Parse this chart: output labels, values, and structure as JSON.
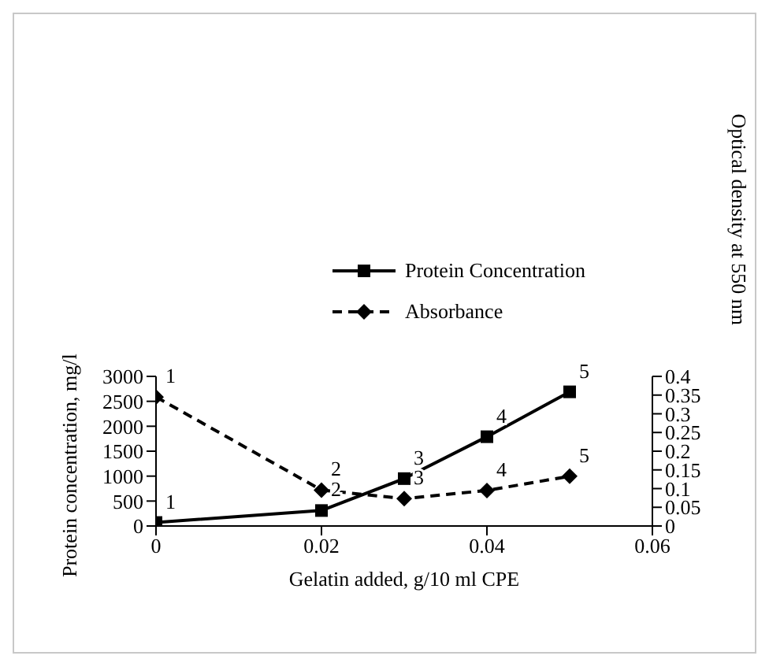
{
  "chart_data": {
    "type": "line",
    "xlabel": "Gelatin added, g/10 ml CPE",
    "ylabel": "Protein concentration, mg/l",
    "y2label": "Optical density at 550 nm",
    "x": [
      0,
      0.02,
      0.03,
      0.04,
      0.05
    ],
    "series": [
      {
        "name": "Protein Concentration",
        "color": "#000000",
        "values": [
          70,
          310,
          950,
          1790,
          2690
        ],
        "marker": "square",
        "line_style": "solid"
      },
      {
        "name": "Absorbance",
        "color": "#000000",
        "values": [
          0.345,
          0.096,
          0.073,
          0.095,
          0.133
        ],
        "marker": "diamond",
        "line_style": "dashed",
        "axis": "y2"
      }
    ],
    "annotations": [
      {
        "text": "1",
        "x": 0,
        "y": 70
      },
      {
        "text": "2",
        "x": 0.02,
        "y": 310
      },
      {
        "text": "3",
        "x": 0.03,
        "y": 950
      },
      {
        "text": "4",
        "x": 0.04,
        "y": 1790
      },
      {
        "text": "5",
        "x": 0.05,
        "y": 2690
      },
      {
        "text": "1",
        "x": 0,
        "y": 2588
      },
      {
        "text": "2",
        "x": 0.02,
        "y": 720
      },
      {
        "text": "3",
        "x": 0.03,
        "y": 548
      },
      {
        "text": "4",
        "x": 0.04,
        "y": 713
      },
      {
        "text": "5",
        "x": 0.05,
        "y": 998
      }
    ],
    "xlim": [
      0,
      0.06
    ],
    "xticks": [
      0,
      0.02,
      0.04,
      0.06
    ],
    "ylim": [
      0,
      3000
    ],
    "yticks": [
      0,
      500,
      1000,
      1500,
      2000,
      2500,
      3000
    ],
    "y2lim": [
      0,
      0.4
    ],
    "y2ticks": [
      0,
      0.05,
      0.1,
      0.15,
      0.2,
      0.25,
      0.3,
      0.35,
      0.4
    ],
    "legend": "top",
    "grid": false
  }
}
